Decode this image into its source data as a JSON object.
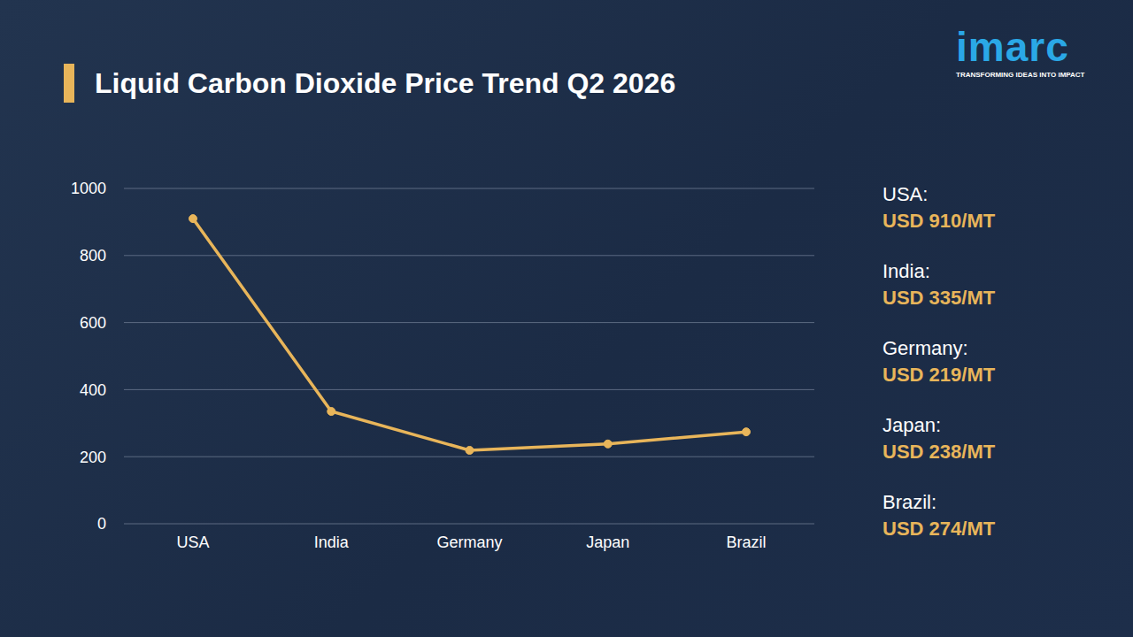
{
  "chart_data": {
    "type": "line",
    "title": "Liquid Carbon Dioxide Price Trend Q2 2026",
    "categories": [
      "USA",
      "India",
      "Germany",
      "Japan",
      "Brazil"
    ],
    "values": [
      910,
      335,
      219,
      238,
      274
    ],
    "value_labels": [
      "USD 910/MT",
      "USD 335/MT",
      "USD 219/MT",
      "USD 238/MT",
      "USD 274/MT"
    ],
    "color": "#e8b55a",
    "marker": "circle",
    "ylim": [
      0,
      1000
    ],
    "yticks": [
      0,
      200,
      400,
      600,
      800,
      1000
    ],
    "grid": true
  },
  "price_panel": {
    "labels": [
      "USA:",
      "India:",
      "Germany:",
      "Japan:",
      "Brazil:"
    ]
  },
  "logo": {
    "text": "imarc",
    "tagline": "TRANSFORMING IDEAS INTO IMPACT"
  }
}
